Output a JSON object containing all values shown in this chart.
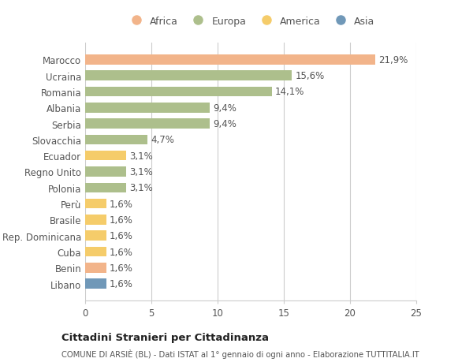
{
  "countries": [
    "Marocco",
    "Ucraina",
    "Romania",
    "Albania",
    "Serbia",
    "Slovacchia",
    "Ecuador",
    "Regno Unito",
    "Polonia",
    "Perù",
    "Brasile",
    "Rep. Dominicana",
    "Cuba",
    "Benin",
    "Libano"
  ],
  "values": [
    21.9,
    15.6,
    14.1,
    9.4,
    9.4,
    4.7,
    3.1,
    3.1,
    3.1,
    1.6,
    1.6,
    1.6,
    1.6,
    1.6,
    1.6
  ],
  "labels": [
    "21,9%",
    "15,6%",
    "14,1%",
    "9,4%",
    "9,4%",
    "4,7%",
    "3,1%",
    "3,1%",
    "3,1%",
    "1,6%",
    "1,6%",
    "1,6%",
    "1,6%",
    "1,6%",
    "1,6%"
  ],
  "categories": [
    "Africa",
    "Europa",
    "America",
    "Asia"
  ],
  "bar_colors": [
    "#F2B48A",
    "#ADBF8C",
    "#ADBF8C",
    "#ADBF8C",
    "#ADBF8C",
    "#ADBF8C",
    "#F5CC6A",
    "#ADBF8C",
    "#ADBF8C",
    "#F5CC6A",
    "#F5CC6A",
    "#F5CC6A",
    "#F5CC6A",
    "#F2B48A",
    "#7098B8"
  ],
  "legend_colors": {
    "Africa": "#F2B48A",
    "Europa": "#ADBF8C",
    "America": "#F5CC6A",
    "Asia": "#7098B8"
  },
  "xlim": [
    0,
    25
  ],
  "xticks": [
    0,
    5,
    10,
    15,
    20,
    25
  ],
  "title": "Cittadini Stranieri per Cittadinanza",
  "subtitle": "COMUNE DI ARSIÈ (BL) - Dati ISTAT al 1° gennaio di ogni anno - Elaborazione TUTTITALIA.IT",
  "background_color": "#ffffff",
  "bar_height": 0.62,
  "grid_color": "#cccccc",
  "label_fontsize": 8.5,
  "tick_fontsize": 8.5,
  "legend_fontsize": 9
}
